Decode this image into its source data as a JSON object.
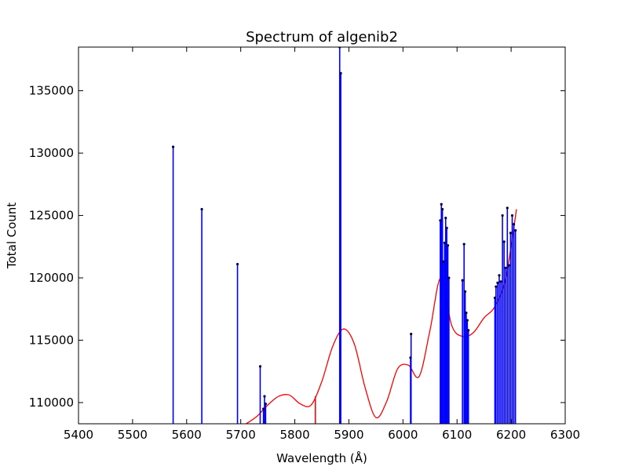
{
  "chart_data": {
    "type": "line",
    "title": "Spectrum of algenib2",
    "xlabel": "Wavelength (Å)",
    "ylabel": "Total Count",
    "xlim": [
      5400,
      6300
    ],
    "ylim": [
      108300,
      138500
    ],
    "xticks": [
      "5400",
      "5500",
      "5600",
      "5700",
      "5800",
      "5900",
      "6000",
      "6100",
      "6200",
      "6300"
    ],
    "yticks": [
      "110000",
      "115000",
      "120000",
      "125000",
      "130000",
      "135000"
    ],
    "grid": false,
    "colors": {
      "spikes": "#0000ff",
      "points": "#000033",
      "fit": "#ff0000"
    },
    "series": [
      {
        "kind": "spikes",
        "x": [
          5575,
          5628,
          5694,
          5736,
          5742,
          5744,
          5746,
          5883,
          5885,
          6014,
          6015,
          6069,
          6071,
          6073,
          6075,
          6077,
          6079,
          6081,
          6083,
          6085,
          6110,
          6113,
          6115,
          6117,
          6119,
          6121,
          6170,
          6172,
          6175,
          6178,
          6181,
          6184,
          6187,
          6190,
          6193,
          6196,
          6199,
          6202,
          6205,
          6208
        ],
        "y": [
          130500,
          125500,
          121100,
          112900,
          109500,
          110500,
          109900,
          138500,
          136400,
          113600,
          115500,
          124600,
          125900,
          125500,
          121300,
          122800,
          124800,
          124000,
          122600,
          120000,
          119800,
          122700,
          118900,
          117200,
          116600,
          115800,
          118400,
          119300,
          119600,
          120200,
          119700,
          125000,
          122900,
          120800,
          125600,
          121000,
          123600,
          125000,
          124300,
          123800
        ]
      },
      {
        "kind": "fit",
        "x": [
          5710,
          5730,
          5750,
          5770,
          5790,
          5810,
          5830,
          5850,
          5870,
          5890,
          5910,
          5930,
          5950,
          5970,
          5990,
          6010,
          6030,
          6050,
          6070,
          6090,
          6110,
          6130,
          6150,
          6170,
          6190,
          6210
        ],
        "y": [
          108300,
          108900,
          109800,
          110500,
          110600,
          109900,
          109800,
          111700,
          114500,
          115900,
          114700,
          111200,
          108800,
          110100,
          112700,
          113000,
          112100,
          115800,
          120000,
          116200,
          115300,
          115600,
          116800,
          117700,
          120000,
          125500
        ]
      }
    ]
  }
}
